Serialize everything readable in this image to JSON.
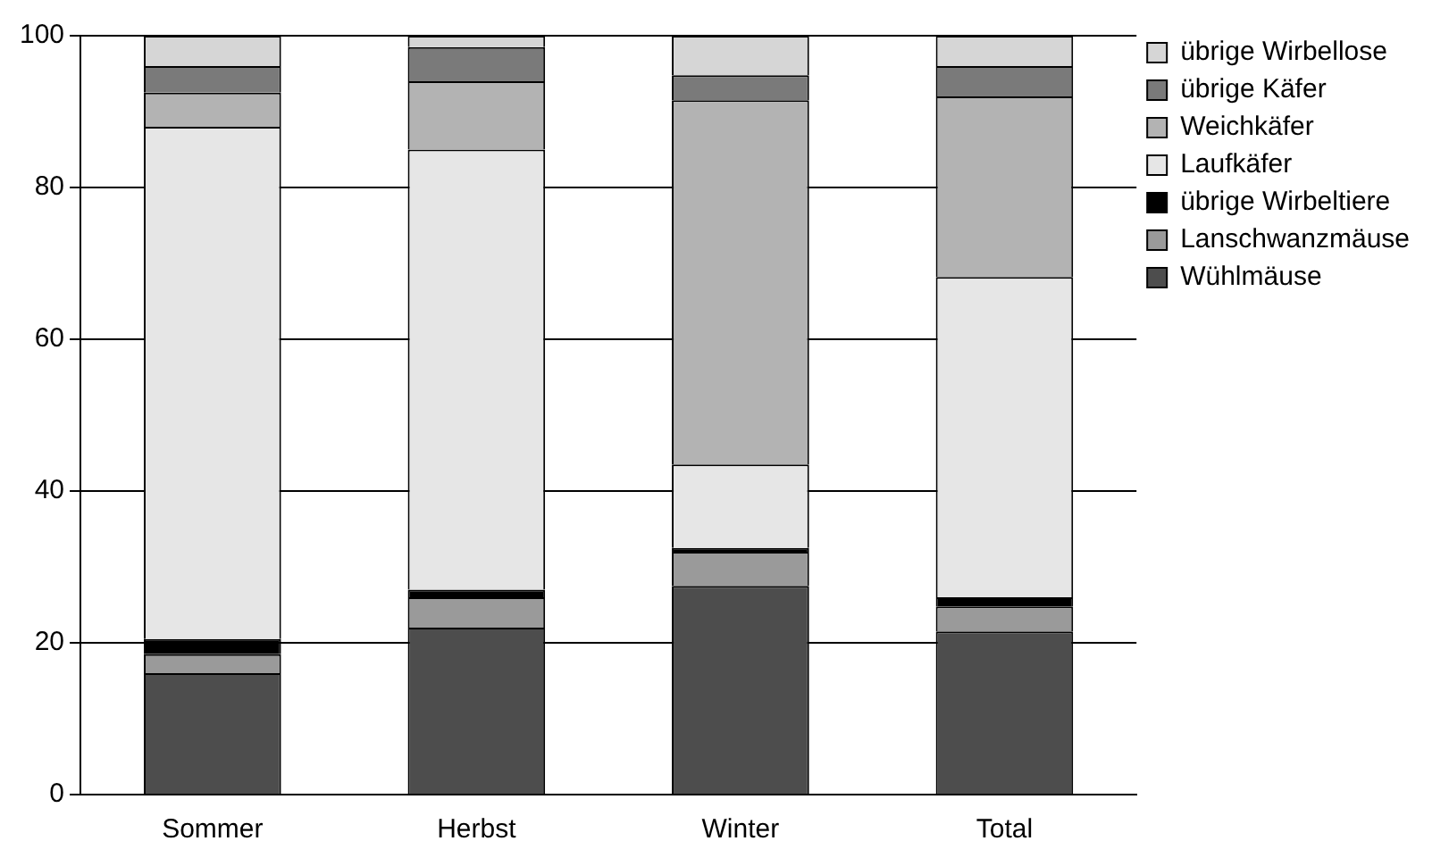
{
  "chart_data": {
    "type": "bar",
    "stacked": true,
    "categories": [
      "Sommer",
      "Herbst",
      "Winter",
      "Total"
    ],
    "series": [
      {
        "name": "Wühlmäuse",
        "color": "#4d4d4d",
        "values": [
          16,
          22,
          27.5,
          21.5
        ]
      },
      {
        "name": "Lanschwanzmäuse",
        "color": "#9a9a9a",
        "values": [
          2.5,
          4,
          4.5,
          3.3
        ]
      },
      {
        "name": "übrige Wirbeltiere",
        "color": "#000000",
        "values": [
          2,
          1,
          0.5,
          1.2
        ]
      },
      {
        "name": "Laufkäfer",
        "color": "#e6e6e6",
        "values": [
          67.5,
          58,
          11,
          42.2
        ]
      },
      {
        "name": "Weichkäfer",
        "color": "#b3b3b3",
        "values": [
          4.5,
          9,
          48,
          23.8
        ]
      },
      {
        "name": "übrige Käfer",
        "color": "#7a7a7a",
        "values": [
          3.5,
          4.5,
          3.3,
          4
        ]
      },
      {
        "name": "übrige Wirbellose",
        "color": "#d6d6d6",
        "values": [
          4,
          1.5,
          5.2,
          4
        ]
      }
    ],
    "ylim": [
      0,
      100
    ],
    "yticks": [
      0,
      20,
      40,
      60,
      80,
      100
    ],
    "grid": "y",
    "legend": "top right"
  }
}
